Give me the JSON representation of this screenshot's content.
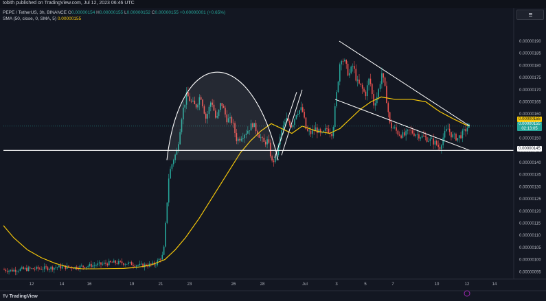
{
  "header": {
    "text": "tobith published on TradingView.com, Jul 12, 2023 06:46 UTC"
  },
  "legend": {
    "symbol": "PEPE / TetherUS, 3h, BINANCE",
    "o_label": "O",
    "o_value": "0.00000154",
    "h_label": "H",
    "h_value": "0.00000155",
    "l_label": "L",
    "l_value": "0.00000152",
    "c_label": "C",
    "c_value": "0.00000155",
    "change": "+0.00000001 (+0.65%)",
    "sma_label": "SMA (50, close, 0, SMA, 5)",
    "sma_value": "0.00000155"
  },
  "price_tags": {
    "sma": "0.00000155",
    "last_price": "0.00000155",
    "countdown": "02:13:05",
    "support": "0.00000145"
  },
  "branding": {
    "logo_text": "TradingView",
    "logo_mark": "TV"
  },
  "colors": {
    "background": "#131722",
    "up": "#26a69a",
    "down": "#ef5350",
    "sma": "#f5c70a",
    "drawing": "#ffffff"
  },
  "chart_data": {
    "type": "candlestick",
    "symbol": "PEPE / TetherUS",
    "interval": "3h",
    "exchange": "BINANCE",
    "y_axis_labels": [
      "0.00000190",
      "0.00000185",
      "0.00000180",
      "0.00000175",
      "0.00000170",
      "0.00000165",
      "0.00000160",
      "0.00000155",
      "0.00000150",
      "0.00000145",
      "0.00000140",
      "0.00000135",
      "0.00000130",
      "0.00000125",
      "0.00000120",
      "0.00000115",
      "0.00000110",
      "0.00000105",
      "0.00000100",
      "0.00000095"
    ],
    "ylim": [
      9.3e-08,
      1.95e-07
    ],
    "x_tick_labels": [
      "12",
      "14",
      "16",
      "19",
      "21",
      "23",
      "26",
      "28",
      "Jul",
      "3",
      "5",
      "7",
      "10",
      "12",
      "14"
    ],
    "price_path": [
      [
        0,
        9.6e-07
      ],
      [
        16,
        9.55e-07
      ],
      [
        30,
        9.6e-07
      ],
      [
        50,
        9.62e-07
      ],
      [
        70,
        9.65e-07
      ],
      [
        90,
        9.7e-07
      ],
      [
        110,
        9.68e-07
      ],
      [
        130,
        9.75e-07
      ],
      [
        145,
        9.8e-07
      ],
      [
        165,
        9.88e-07
      ],
      [
        185,
        9.85e-07
      ],
      [
        205,
        9.75e-07
      ],
      [
        225,
        9.8e-07
      ],
      [
        238,
        1.02e-06
      ],
      [
        246,
        1.35e-06
      ],
      [
        252,
        1.41e-06
      ],
      [
        258,
        1.45e-06
      ],
      [
        265,
        1.6e-06
      ],
      [
        272,
        1.68e-06
      ],
      [
        278,
        1.65e-06
      ],
      [
        285,
        1.63e-06
      ],
      [
        292,
        1.68e-06
      ],
      [
        300,
        1.58e-06
      ],
      [
        308,
        1.66e-06
      ],
      [
        315,
        1.57e-06
      ],
      [
        322,
        1.65e-06
      ],
      [
        330,
        1.58e-06
      ],
      [
        338,
        1.57e-06
      ],
      [
        345,
        1.49e-06
      ],
      [
        352,
        1.51e-06
      ],
      [
        360,
        1.53e-06
      ],
      [
        368,
        1.56e-06
      ],
      [
        376,
        1.52e-06
      ],
      [
        384,
        1.48e-06
      ],
      [
        390,
        1.49e-06
      ],
      [
        396,
        1.4e-06
      ],
      [
        402,
        1.42e-06
      ],
      [
        410,
        1.53e-06
      ],
      [
        418,
        1.58e-06
      ],
      [
        425,
        1.55e-06
      ],
      [
        432,
        1.61e-06
      ],
      [
        440,
        1.62e-06
      ],
      [
        446,
        1.53e-06
      ],
      [
        452,
        1.52e-06
      ],
      [
        460,
        1.54e-06
      ],
      [
        468,
        1.51e-06
      ],
      [
        476,
        1.54e-06
      ],
      [
        484,
        1.52e-06
      ],
      [
        490,
        1.68e-06
      ],
      [
        496,
        1.84e-06
      ],
      [
        502,
        1.81e-06
      ],
      [
        508,
        1.76e-06
      ],
      [
        514,
        1.8e-06
      ],
      [
        520,
        1.73e-06
      ],
      [
        526,
        1.71e-06
      ],
      [
        532,
        1.68e-06
      ],
      [
        538,
        1.75e-06
      ],
      [
        544,
        1.64e-06
      ],
      [
        550,
        1.68e-06
      ],
      [
        556,
        1.77e-06
      ],
      [
        562,
        1.68e-06
      ],
      [
        568,
        1.55e-06
      ],
      [
        574,
        1.54e-06
      ],
      [
        580,
        1.52e-06
      ],
      [
        588,
        1.51e-06
      ],
      [
        596,
        1.53e-06
      ],
      [
        604,
        1.52e-06
      ],
      [
        612,
        1.51e-06
      ],
      [
        620,
        1.5e-06
      ],
      [
        628,
        1.49e-06
      ],
      [
        634,
        1.48e-06
      ],
      [
        640,
        1.46e-06
      ],
      [
        646,
        1.51e-06
      ],
      [
        652,
        1.54e-06
      ],
      [
        658,
        1.51e-06
      ],
      [
        666,
        1.5e-06
      ],
      [
        674,
        1.52e-06
      ],
      [
        682,
        1.55e-06
      ]
    ],
    "sma_path": [
      [
        5,
        1.14e-06
      ],
      [
        20,
        1.09e-06
      ],
      [
        40,
        1.04e-06
      ],
      [
        60,
        1.008e-06
      ],
      [
        80,
        9.85e-07
      ],
      [
        100,
        9.68e-07
      ],
      [
        120,
        9.62e-07
      ],
      [
        140,
        9.62e-07
      ],
      [
        160,
        9.63e-07
      ],
      [
        180,
        9.64e-07
      ],
      [
        200,
        9.68e-07
      ],
      [
        220,
        9.78e-07
      ],
      [
        240,
        1e-06
      ],
      [
        255,
        1.04e-06
      ],
      [
        270,
        1.09e-06
      ],
      [
        290,
        1.17e-06
      ],
      [
        310,
        1.26e-06
      ],
      [
        330,
        1.35e-06
      ],
      [
        350,
        1.44e-06
      ],
      [
        365,
        1.49e-06
      ],
      [
        380,
        1.53e-06
      ],
      [
        395,
        1.56e-06
      ],
      [
        410,
        1.54e-06
      ],
      [
        425,
        1.52e-06
      ],
      [
        440,
        1.55e-06
      ],
      [
        460,
        1.53e-06
      ],
      [
        480,
        1.52e-06
      ],
      [
        495,
        1.54e-06
      ],
      [
        510,
        1.58e-06
      ],
      [
        525,
        1.62e-06
      ],
      [
        540,
        1.65e-06
      ],
      [
        555,
        1.67e-06
      ],
      [
        575,
        1.66e-06
      ],
      [
        600,
        1.66e-06
      ],
      [
        620,
        1.65e-06
      ],
      [
        640,
        1.61e-06
      ],
      [
        660,
        1.58e-06
      ],
      [
        682,
        1.55e-06
      ]
    ],
    "annotations": {
      "support_level": 1.45e-06,
      "upper_trendline": [
        [
          494,
          1.9e-06
        ],
        [
          684,
          1.55e-06
        ]
      ],
      "lower_trendline": [
        [
          488,
          1.66e-06
        ],
        [
          684,
          1.45e-06
        ]
      ],
      "rounded_top": {
        "x_start": 243,
        "x_end": 405,
        "x_peak": 322,
        "peak": 1.78e-06,
        "base": 1.41e-06
      },
      "flag_channel": [
        [
          [
            400,
            1.42e-06
          ],
          [
            432,
            1.69e-06
          ]
        ],
        [
          [
            410,
            1.43e-06
          ],
          [
            440,
            1.7e-06
          ]
        ]
      ]
    },
    "grid": false,
    "legend_position": "top-left"
  }
}
